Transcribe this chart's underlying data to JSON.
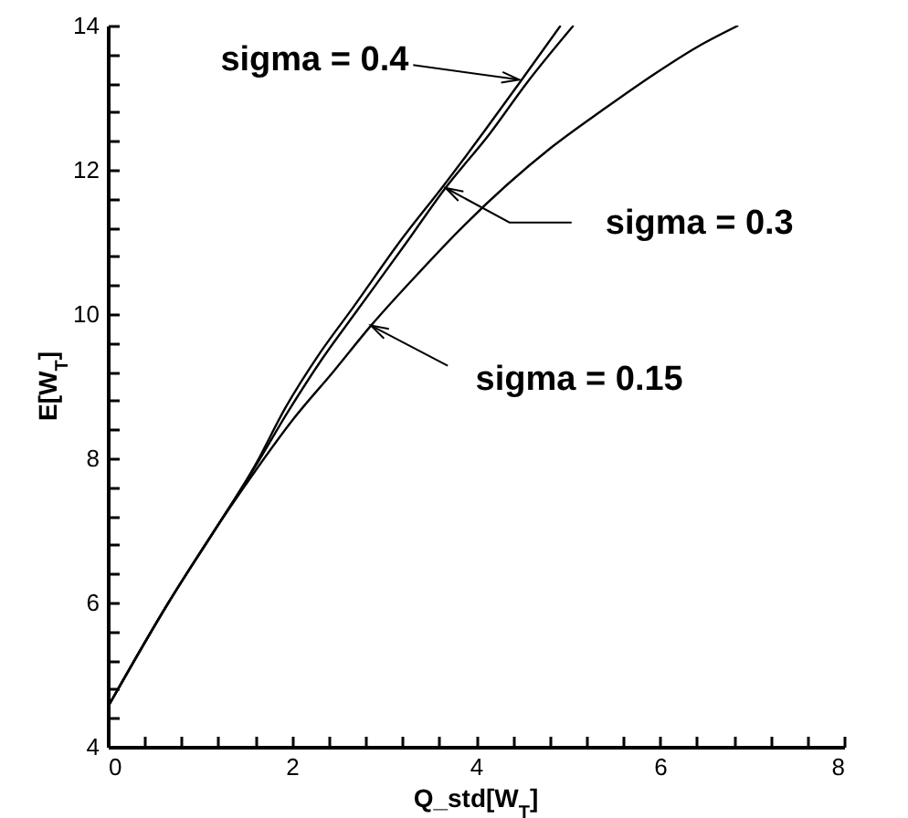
{
  "chart_data": {
    "type": "line",
    "xlabel": "Q_std[W$_{T}$]",
    "ylabel": "E[W$_{T}$]",
    "xlim": [
      0,
      8
    ],
    "ylim": [
      4,
      14
    ],
    "xticks": [
      0,
      {
        "value": 0.4,
        "label": null
      },
      {
        "value": 0.8,
        "label": null
      },
      {
        "value": 1.2,
        "label": null
      },
      {
        "value": 1.6,
        "label": null
      },
      2,
      {
        "value": 2.4,
        "label": null
      },
      {
        "value": 2.8,
        "label": null
      },
      {
        "value": 3.2,
        "label": null
      },
      {
        "value": 3.6,
        "label": null
      },
      4,
      {
        "value": 4.4,
        "label": null
      },
      {
        "value": 4.8,
        "label": null
      },
      {
        "value": 5.2,
        "label": null
      },
      {
        "value": 5.6,
        "label": null
      },
      6,
      {
        "value": 6.4,
        "label": null
      },
      {
        "value": 6.8,
        "label": null
      },
      {
        "value": 7.2,
        "label": null
      },
      {
        "value": 7.6,
        "label": null
      },
      8
    ],
    "yticks": [
      4,
      {
        "value": 4.4,
        "label": null
      },
      {
        "value": 4.8,
        "label": null
      },
      {
        "value": 5.2,
        "label": null
      },
      {
        "value": 5.6,
        "label": null
      },
      6,
      {
        "value": 6.4,
        "label": null
      },
      {
        "value": 6.8,
        "label": null
      },
      {
        "value": 7.2,
        "label": null
      },
      {
        "value": 7.6,
        "label": null
      },
      8,
      {
        "value": 8.4,
        "label": null
      },
      {
        "value": 8.8,
        "label": null
      },
      {
        "value": 9.2,
        "label": null
      },
      {
        "value": 9.6,
        "label": null
      },
      10,
      {
        "value": 10.4,
        "label": null
      },
      {
        "value": 10.8,
        "label": null
      },
      {
        "value": 11.2,
        "label": null
      },
      {
        "value": 11.6,
        "label": null
      },
      12,
      {
        "value": 12.4,
        "label": null
      },
      {
        "value": 12.8,
        "label": null
      },
      {
        "value": 13.2,
        "label": null
      },
      {
        "value": 13.6,
        "label": null
      },
      14
    ],
    "grid": false,
    "line_style": "solid",
    "marker": "none",
    "series": [
      {
        "color": "#000000",
        "x": [
          0,
          0.66,
          1.16,
          1.6,
          1.93,
          2.3,
          2.67,
          3.2,
          3.63,
          4.1,
          4.47,
          4.92
        ],
        "values": [
          4.55,
          6,
          7,
          7.9,
          8.7,
          9.45,
          10.1,
          11.05,
          11.75,
          12.55,
          13.2,
          14
        ]
      },
      {
        "color": "#000000",
        "x": [
          0,
          0.66,
          1.16,
          1.6,
          1.96,
          2.33,
          2.71,
          3.25,
          3.67,
          4.15,
          4.55,
          5.06
        ],
        "values": [
          4.55,
          6,
          7,
          7.88,
          8.65,
          9.38,
          10.05,
          11,
          11.75,
          12.5,
          13.2,
          14
        ]
      },
      {
        "color": "#000000",
        "x": [
          0,
          0.66,
          1.16,
          1.6,
          2.02,
          2.45,
          2.86,
          3.4,
          3.88,
          4.81,
          5.4,
          5.93,
          6.4,
          6.85
        ],
        "values": [
          4.55,
          6,
          7,
          7.82,
          8.55,
          9.2,
          9.84,
          10.6,
          11.24,
          12.3,
          12.85,
          13.32,
          13.7,
          14
        ]
      }
    ],
    "annotations": [
      {
        "text": "sigma = 0.4",
        "x": 4.47,
        "y": 13.25
      },
      {
        "text": "sigma = 0.3",
        "x": 3.67,
        "y": 11.75
      },
      {
        "text": "sigma = 0.15",
        "x": 2.86,
        "y": 9.84
      }
    ]
  }
}
